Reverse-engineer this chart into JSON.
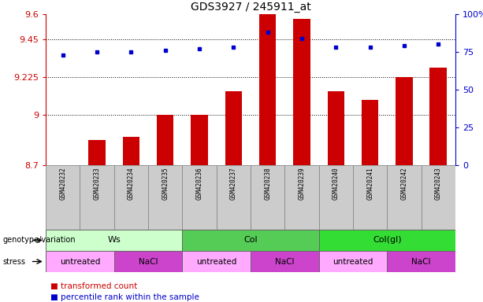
{
  "title": "GDS3927 / 245911_at",
  "samples": [
    "GSM420232",
    "GSM420233",
    "GSM420234",
    "GSM420235",
    "GSM420236",
    "GSM420237",
    "GSM420238",
    "GSM420239",
    "GSM420240",
    "GSM420241",
    "GSM420242",
    "GSM420243"
  ],
  "bar_values": [
    8.7,
    8.85,
    8.87,
    9.0,
    9.0,
    9.14,
    9.6,
    9.57,
    9.14,
    9.09,
    9.225,
    9.28
  ],
  "bar_bottom": 8.7,
  "dot_values": [
    73,
    75,
    75,
    76,
    77,
    78,
    88,
    84,
    78,
    78,
    79,
    80
  ],
  "ylim_left": [
    8.7,
    9.6
  ],
  "ylim_right": [
    0,
    100
  ],
  "yticks_left": [
    8.7,
    9.0,
    9.225,
    9.45,
    9.6
  ],
  "ytick_labels_left": [
    "8.7",
    "9",
    "9.225",
    "9.45",
    "9.6"
  ],
  "yticks_right": [
    0,
    25,
    50,
    75,
    100
  ],
  "ytick_labels_right": [
    "0",
    "25",
    "50",
    "75",
    "100%"
  ],
  "hlines": [
    9.0,
    9.225,
    9.45
  ],
  "bar_color": "#cc0000",
  "dot_color": "#0000cc",
  "genotype_groups": [
    {
      "label": "Ws",
      "start": 0,
      "end": 4,
      "color": "#ccffcc"
    },
    {
      "label": "Col",
      "start": 4,
      "end": 8,
      "color": "#55cc55"
    },
    {
      "label": "Col(gl)",
      "start": 8,
      "end": 12,
      "color": "#33dd33"
    }
  ],
  "stress_groups": [
    {
      "label": "untreated",
      "start": 0,
      "end": 2,
      "color": "#ffaaff"
    },
    {
      "label": "NaCl",
      "start": 2,
      "end": 4,
      "color": "#cc44cc"
    },
    {
      "label": "untreated",
      "start": 4,
      "end": 6,
      "color": "#ffaaff"
    },
    {
      "label": "NaCl",
      "start": 6,
      "end": 8,
      "color": "#cc44cc"
    },
    {
      "label": "untreated",
      "start": 8,
      "end": 10,
      "color": "#ffaaff"
    },
    {
      "label": "NaCl",
      "start": 10,
      "end": 12,
      "color": "#cc44cc"
    }
  ],
  "bar_legend_label": "transformed count",
  "dot_legend_label": "percentile rank within the sample",
  "xlabel_color": "#cc0000",
  "ylabel_right_color": "#0000cc",
  "sample_box_color": "#cccccc",
  "fig_width": 6.13,
  "fig_height": 3.84,
  "dpi": 100
}
